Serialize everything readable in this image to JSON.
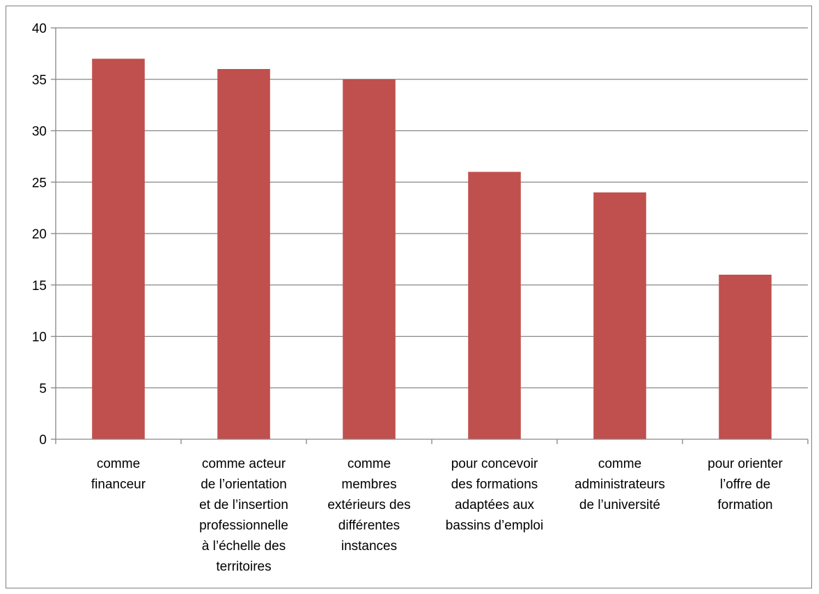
{
  "chart_data": {
    "type": "bar",
    "categories": [
      [
        "comme",
        "financeur"
      ],
      [
        "comme acteur",
        "de l’orientation",
        "et de l’insertion",
        "professionnelle",
        "à l’échelle des",
        "territoires"
      ],
      [
        "comme",
        "membres",
        "extérieurs des",
        "différentes",
        "instances"
      ],
      [
        "pour concevoir",
        "des formations",
        "adaptées aux",
        "bassins d’emploi"
      ],
      [
        "comme",
        "administrateurs",
        "de l’université"
      ],
      [
        "pour orienter",
        "l’offre de",
        "formation"
      ]
    ],
    "values": [
      37,
      36,
      35,
      26,
      24,
      16
    ],
    "title": "",
    "xlabel": "",
    "ylabel": "",
    "ylim": [
      0,
      40
    ],
    "yticks": [
      0,
      5,
      10,
      15,
      20,
      25,
      30,
      35,
      40
    ],
    "grid": true,
    "legend": "none",
    "colors": {
      "bar": "#c0504d",
      "grid": "#868686",
      "axis": "#868686",
      "text": "#000000"
    }
  }
}
